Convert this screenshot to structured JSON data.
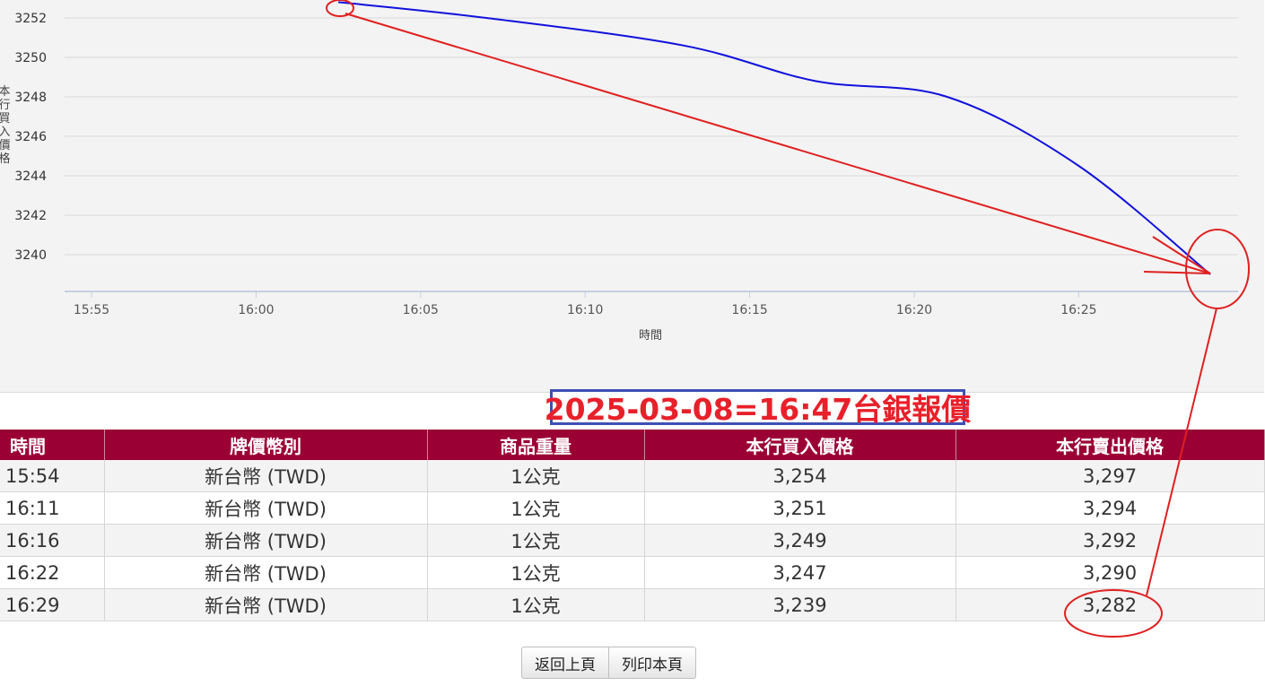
{
  "chart_data": {
    "type": "line",
    "ylabel": "本行買入價格",
    "xlabel": "時間",
    "y_ticks": [
      "3252",
      "3250",
      "3248",
      "3246",
      "3244",
      "3242",
      "3240"
    ],
    "x_ticks": [
      "15:55",
      "16:00",
      "16:05",
      "16:10",
      "16:15",
      "16:20",
      "16:25"
    ],
    "ylim": [
      3238,
      3253
    ],
    "series": [
      {
        "color": "#1111dd",
        "points": [
          {
            "x": "16:02.5",
            "y": 3252.8
          },
          {
            "x": "16:07",
            "y": 3252.0
          },
          {
            "x": "16:13",
            "y": 3250.6
          },
          {
            "x": "16:17",
            "y": 3248.8
          },
          {
            "x": "16:21",
            "y": 3248.0
          },
          {
            "x": "16:25",
            "y": 3244.5
          },
          {
            "x": "16:29",
            "y": 3239.0
          }
        ]
      }
    ],
    "grid": true
  },
  "annotation": {
    "title": "2025-03-08=16:47台銀報價",
    "text_color": "#e8202a",
    "box_color": "#3d4fb5"
  },
  "table": {
    "headers": [
      "時間",
      "牌價幣別",
      "商品重量",
      "本行買入價格",
      "本行賣出價格"
    ],
    "rows": [
      [
        "15:54",
        "新台幣 (TWD)",
        "1公克",
        "3,254",
        "3,297"
      ],
      [
        "16:11",
        "新台幣 (TWD)",
        "1公克",
        "3,251",
        "3,294"
      ],
      [
        "16:16",
        "新台幣 (TWD)",
        "1公克",
        "3,249",
        "3,292"
      ],
      [
        "16:22",
        "新台幣 (TWD)",
        "1公克",
        "3,247",
        "3,290"
      ],
      [
        "16:29",
        "新台幣 (TWD)",
        "1公克",
        "3,239",
        "3,282"
      ]
    ],
    "header_color": "#9b0034"
  },
  "buttons": {
    "back_label": "返回上頁",
    "print_label": "列印本頁"
  },
  "markup_color": "#e02020"
}
